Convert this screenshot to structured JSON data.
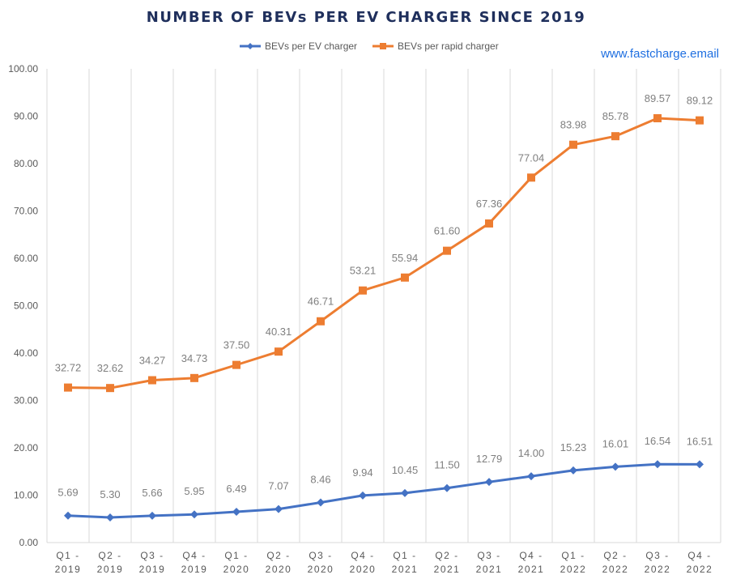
{
  "chart_data": {
    "type": "line",
    "title": "NUMBER OF BEVs PER EV CHARGER SINCE 2019",
    "watermark": "www.fastcharge.email",
    "xlabel": "",
    "ylabel": "",
    "ylim": [
      0,
      100
    ],
    "yticks": [
      "0.00",
      "10.00",
      "20.00",
      "30.00",
      "40.00",
      "50.00",
      "60.00",
      "70.00",
      "80.00",
      "90.00",
      "100.00"
    ],
    "grid": "vertical",
    "legend": "top-center",
    "categories": [
      [
        "Q1 -",
        "2019"
      ],
      [
        "Q2 -",
        "2019"
      ],
      [
        "Q3 -",
        "2019"
      ],
      [
        "Q4 -",
        "2019"
      ],
      [
        "Q1 -",
        "2020"
      ],
      [
        "Q2 -",
        "2020"
      ],
      [
        "Q3 -",
        "2020"
      ],
      [
        "Q4 -",
        "2020"
      ],
      [
        "Q1 -",
        "2021"
      ],
      [
        "Q2 -",
        "2021"
      ],
      [
        "Q3 -",
        "2021"
      ],
      [
        "Q4 -",
        "2021"
      ],
      [
        "Q1 -",
        "2022"
      ],
      [
        "Q2 -",
        "2022"
      ],
      [
        "Q3 -",
        "2022"
      ],
      [
        "Q4 -",
        "2022"
      ]
    ],
    "series": [
      {
        "name": "BEVs per EV charger",
        "color": "#4472C4",
        "marker": "diamond",
        "values": [
          5.69,
          5.3,
          5.66,
          5.95,
          6.49,
          7.07,
          8.46,
          9.94,
          10.45,
          11.5,
          12.79,
          14.0,
          15.23,
          16.01,
          16.54,
          16.51
        ]
      },
      {
        "name": "BEVs per rapid charger",
        "color": "#ED7D31",
        "marker": "square",
        "values": [
          32.72,
          32.62,
          34.27,
          34.73,
          37.5,
          40.31,
          46.71,
          53.21,
          55.94,
          61.6,
          67.36,
          77.04,
          83.98,
          85.78,
          89.57,
          89.12
        ]
      }
    ]
  }
}
